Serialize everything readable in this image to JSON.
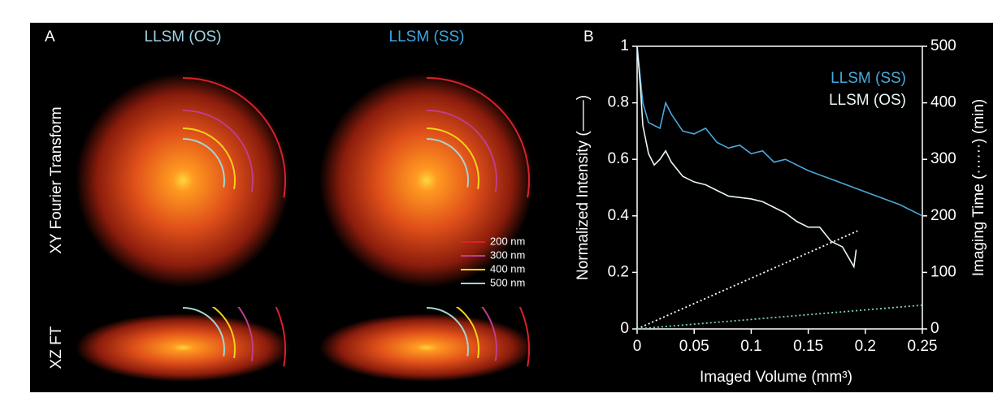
{
  "panel_a": {
    "label": "A",
    "columns": [
      "LLSM (OS)",
      "LLSM (SS)"
    ],
    "column_colors": [
      "#9fd3e6",
      "#3ea6e6"
    ],
    "rows": [
      "XY Fourier Transform",
      "XZ FT"
    ],
    "legend": [
      {
        "label": "200 nm",
        "color": "#d8222a"
      },
      {
        "label": "300 nm",
        "color": "#c03c8c"
      },
      {
        "label": "400 nm",
        "color": "#f2d21a"
      },
      {
        "label": "500 nm",
        "color": "#9fd8d0"
      }
    ]
  },
  "chart_data": {
    "type": "line",
    "label": "B",
    "xlabel": "Imaged Volume (mm³)",
    "ylabel": "Normalized Intensity (——)",
    "y2label": "Imaging Time (······) (min)",
    "xlim": [
      0,
      0.25
    ],
    "xticks": [
      0,
      0.05,
      0.1,
      0.15,
      0.2,
      0.25
    ],
    "ylim": [
      0,
      1
    ],
    "yticks": [
      0,
      0.2,
      0.4,
      0.6,
      0.8,
      1
    ],
    "y2lim": [
      0,
      500
    ],
    "y2ticks": [
      0,
      100,
      200,
      300,
      400,
      500
    ],
    "series": [
      {
        "name": "LLSM (SS)",
        "color": "#4aa8dc",
        "x": [
          0,
          0.003,
          0.005,
          0.01,
          0.015,
          0.02,
          0.025,
          0.03,
          0.04,
          0.05,
          0.06,
          0.07,
          0.08,
          0.09,
          0.1,
          0.11,
          0.12,
          0.13,
          0.15,
          0.17,
          0.19,
          0.21,
          0.23,
          0.25
        ],
        "values": [
          1.0,
          0.88,
          0.8,
          0.73,
          0.72,
          0.71,
          0.8,
          0.76,
          0.7,
          0.69,
          0.71,
          0.66,
          0.64,
          0.65,
          0.62,
          0.63,
          0.59,
          0.6,
          0.56,
          0.53,
          0.5,
          0.47,
          0.44,
          0.4
        ]
      },
      {
        "name": "LLSM (OS)",
        "color": "#e8f6f4",
        "x": [
          0,
          0.003,
          0.005,
          0.01,
          0.015,
          0.02,
          0.025,
          0.03,
          0.04,
          0.05,
          0.06,
          0.07,
          0.08,
          0.1,
          0.11,
          0.12,
          0.13,
          0.14,
          0.15,
          0.16,
          0.17,
          0.18,
          0.19,
          0.192
        ],
        "values": [
          1.0,
          0.85,
          0.72,
          0.62,
          0.58,
          0.6,
          0.63,
          0.59,
          0.54,
          0.52,
          0.51,
          0.49,
          0.47,
          0.46,
          0.45,
          0.43,
          0.41,
          0.38,
          0.36,
          0.36,
          0.31,
          0.29,
          0.22,
          0.28
        ]
      },
      {
        "axis": "y2",
        "color": "#ffffff",
        "dash": true,
        "x": [
          0,
          0.195
        ],
        "values": [
          0,
          175
        ]
      },
      {
        "axis": "y2",
        "color": "#7fd4b4",
        "dash": true,
        "x": [
          0,
          0.25
        ],
        "values": [
          0,
          42
        ]
      }
    ]
  }
}
